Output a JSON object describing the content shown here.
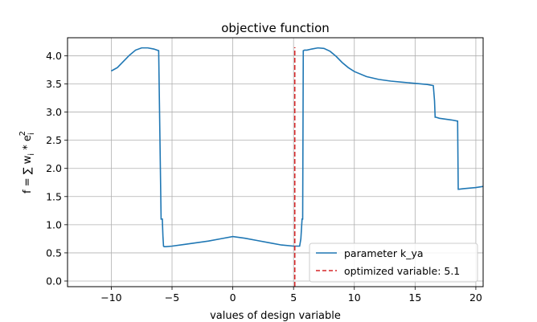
{
  "chart_data": {
    "type": "line",
    "title": "objective function",
    "xlabel": "values of design variable",
    "ylabel_prefix": "f = ∑ w",
    "ylabel_sub1": "i",
    "ylabel_mid": " * e",
    "ylabel_sub2": "i",
    "ylabel_sup": "2",
    "xlim": [
      -13.6,
      20.6
    ],
    "ylim": [
      -0.1,
      4.32
    ],
    "xticks": [
      -10,
      -5,
      0,
      5,
      10,
      15,
      20
    ],
    "xtick_labels": [
      "−10",
      "−5",
      "0",
      "5",
      "10",
      "15",
      "20"
    ],
    "yticks": [
      0.0,
      0.5,
      1.0,
      1.5,
      2.0,
      2.5,
      3.0,
      3.5,
      4.0
    ],
    "ytick_labels": [
      "0.0",
      "0.5",
      "1.0",
      "1.5",
      "2.0",
      "2.5",
      "3.0",
      "3.5",
      "4.0"
    ],
    "grid": true,
    "legend_position": "lower-right",
    "series": [
      {
        "name": "parameter k_ya",
        "color": "#1f77b4",
        "style": "solid",
        "x": [
          -10,
          -9.5,
          -9,
          -8.5,
          -8,
          -7.5,
          -7,
          -6.5,
          -6.1,
          -5.9,
          -5.8,
          -5.75,
          -5.7,
          -5.65,
          -5.5,
          -5,
          -4,
          -3,
          -2,
          -1,
          0,
          1,
          2,
          3,
          4,
          5,
          5.5,
          5.6,
          5.7,
          5.75,
          5.8,
          5.9,
          6.1,
          6.5,
          7,
          7.5,
          8,
          8.5,
          9,
          9.5,
          10,
          11,
          12,
          13,
          14,
          15,
          16,
          16.5,
          16.6,
          16.65,
          16.7,
          17,
          18,
          18.5,
          18.55,
          18.6,
          19,
          20,
          20.6
        ],
        "y": [
          3.73,
          3.79,
          3.9,
          4.01,
          4.1,
          4.14,
          4.14,
          4.12,
          4.09,
          1.1,
          1.1,
          0.8,
          0.62,
          0.61,
          0.61,
          0.62,
          0.65,
          0.68,
          0.71,
          0.75,
          0.79,
          0.76,
          0.72,
          0.68,
          0.64,
          0.62,
          0.62,
          0.75,
          1.1,
          1.1,
          4.09,
          4.1,
          4.1,
          4.12,
          4.14,
          4.13,
          4.08,
          3.99,
          3.88,
          3.79,
          3.72,
          3.63,
          3.58,
          3.55,
          3.53,
          3.51,
          3.49,
          3.47,
          3.2,
          2.91,
          2.91,
          2.89,
          2.86,
          2.84,
          1.63,
          1.63,
          1.64,
          1.66,
          1.68
        ]
      },
      {
        "name": "optimized variable: 5.1",
        "color": "#d62728",
        "style": "dashed",
        "x": [
          5.1,
          5.1
        ],
        "y": [
          -0.1,
          4.15
        ]
      }
    ]
  }
}
